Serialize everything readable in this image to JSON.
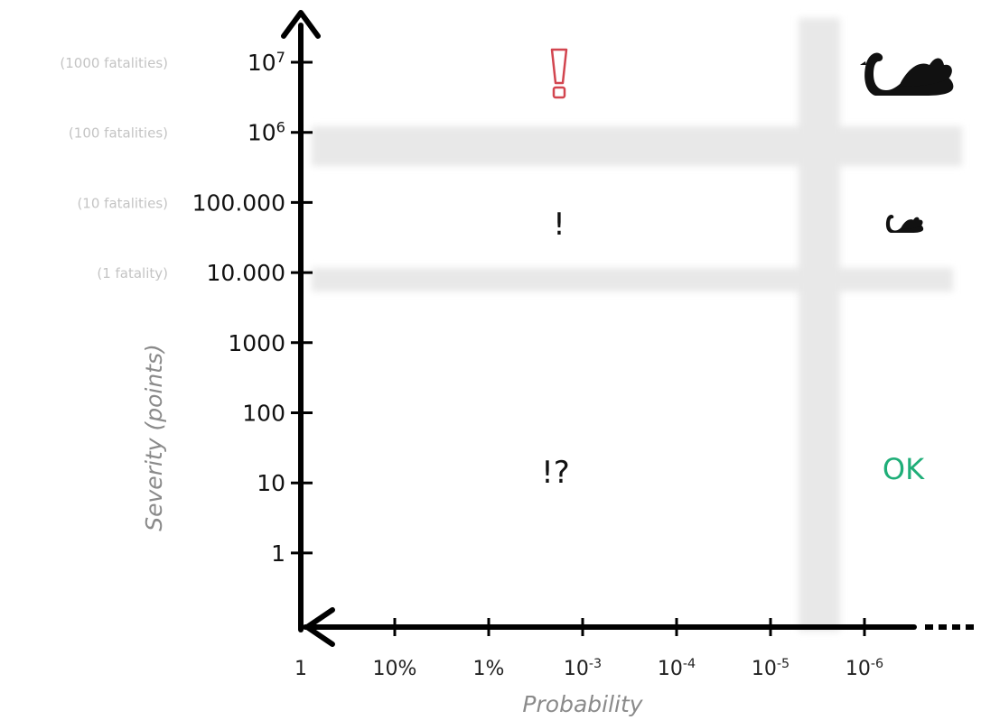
{
  "diagram": {
    "y_axis_title": "Severity (points)",
    "x_axis_title": "Probability",
    "y_ticks": [
      {
        "base": "10",
        "exp": "7",
        "fatalities": "(1000 fatalities)"
      },
      {
        "base": "10",
        "exp": "6",
        "fatalities": "(100 fatalities)"
      },
      {
        "base": "100.000",
        "exp": "",
        "fatalities": "(10 fatalities)"
      },
      {
        "base": "10.000",
        "exp": "",
        "fatalities": "(1 fatality)"
      },
      {
        "base": "1000",
        "exp": "",
        "fatalities": ""
      },
      {
        "base": "100",
        "exp": "",
        "fatalities": ""
      },
      {
        "base": "10",
        "exp": "",
        "fatalities": ""
      },
      {
        "base": "1",
        "exp": "",
        "fatalities": ""
      }
    ],
    "x_ticks": [
      {
        "base": "1",
        "exp": ""
      },
      {
        "base": "10%",
        "exp": ""
      },
      {
        "base": "1%",
        "exp": ""
      },
      {
        "base": "10",
        "exp": "-3"
      },
      {
        "base": "10",
        "exp": "-4"
      },
      {
        "base": "10",
        "exp": "-5"
      },
      {
        "base": "10",
        "exp": "-6"
      }
    ],
    "zones": {
      "high_severity_mark": "!",
      "mid_severity_mark": "!",
      "frequent_low_mark": "!?",
      "rare_low_mark": "OK"
    },
    "icons": {
      "large_swan": "black-swan-icon",
      "small_swan": "black-swan-icon"
    },
    "colors": {
      "axis": "#000000",
      "threshold_band": "#e8e8e8",
      "alert_red": "#d2454f",
      "ok_green": "#1fae78",
      "fatality_label": "#c4c4c4"
    }
  }
}
